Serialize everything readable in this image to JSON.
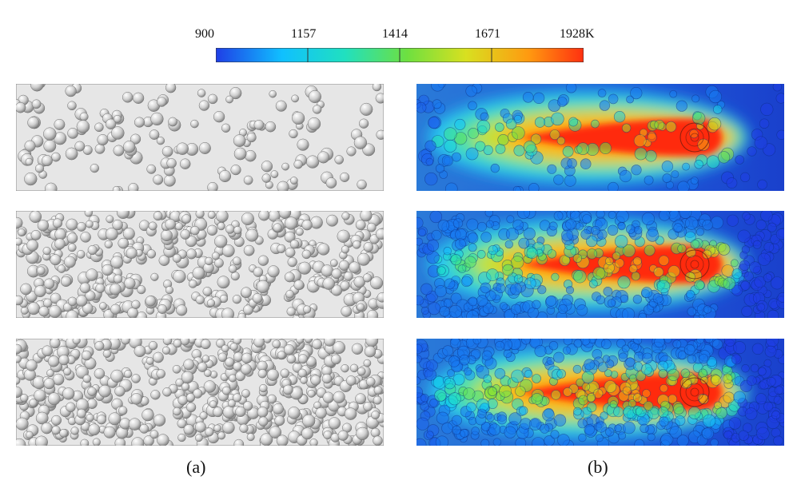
{
  "colorbar": {
    "tick_labels": [
      "900",
      "1157",
      "1414",
      "1671",
      "1928K"
    ],
    "values": [
      900,
      1157,
      1414,
      1671,
      1928
    ],
    "unit": "K",
    "colormap": [
      "#1f3ee6",
      "#10c0ff",
      "#20e0c0",
      "#6ee040",
      "#d8e020",
      "#ff9a10",
      "#ff3010"
    ]
  },
  "captions": {
    "left": "(a)",
    "right": "(b)"
  },
  "panels": {
    "powder_bed": {
      "count": 3,
      "particle_color": "#cfcfcf",
      "background_color": "#e6e6e6"
    },
    "temperature_field": {
      "count": 3,
      "melt_pool_color": "#ff2a10",
      "background_color": "#1e4fd0"
    }
  }
}
